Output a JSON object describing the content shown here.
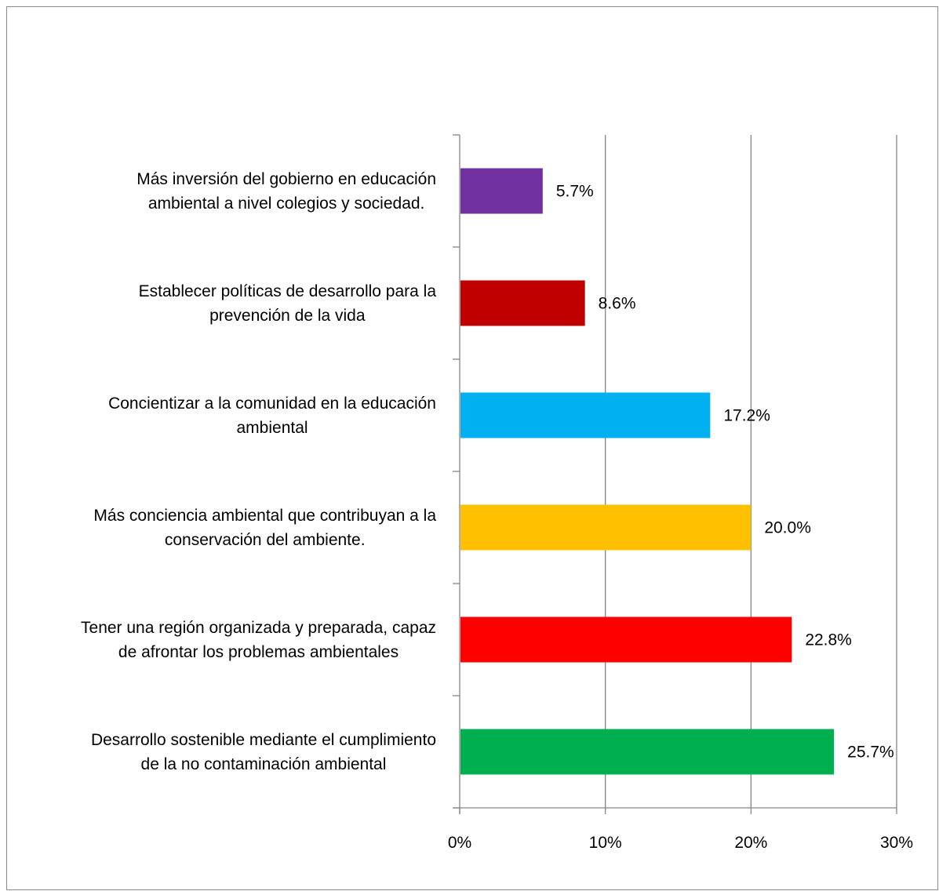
{
  "chart_data": {
    "type": "bar",
    "orientation": "horizontal",
    "categories": [
      [
        "Más inversión del gobierno en educación",
        "ambiental a nivel colegios y sociedad."
      ],
      [
        "Establecer políticas de desarrollo para la",
        "prevención de la vida"
      ],
      [
        "Concientizar a la comunidad en la educación",
        "ambiental"
      ],
      [
        "Más conciencia ambiental que contribuyan a la",
        "conservación del ambiente."
      ],
      [
        "Tener una región organizada y preparada, capaz",
        "de afrontar los problemas ambientales"
      ],
      [
        "Desarrollo sostenible mediante el cumplimiento",
        "de la no contaminación ambiental"
      ]
    ],
    "values": [
      5.7,
      8.6,
      17.2,
      20.0,
      22.8,
      25.7
    ],
    "value_labels": [
      "5.7%",
      "8.6%",
      "17.2%",
      "20.0%",
      "22.8%",
      "25.7%"
    ],
    "colors": [
      "#7030a0",
      "#c00000",
      "#00b0f0",
      "#ffc000",
      "#ff0000",
      "#00b050"
    ],
    "xlim": [
      0,
      30
    ],
    "xticks": [
      0,
      10,
      20,
      30
    ],
    "xtick_labels": [
      "0%",
      "10%",
      "20%",
      "30%"
    ],
    "grid": "vertical",
    "legend": "none"
  }
}
